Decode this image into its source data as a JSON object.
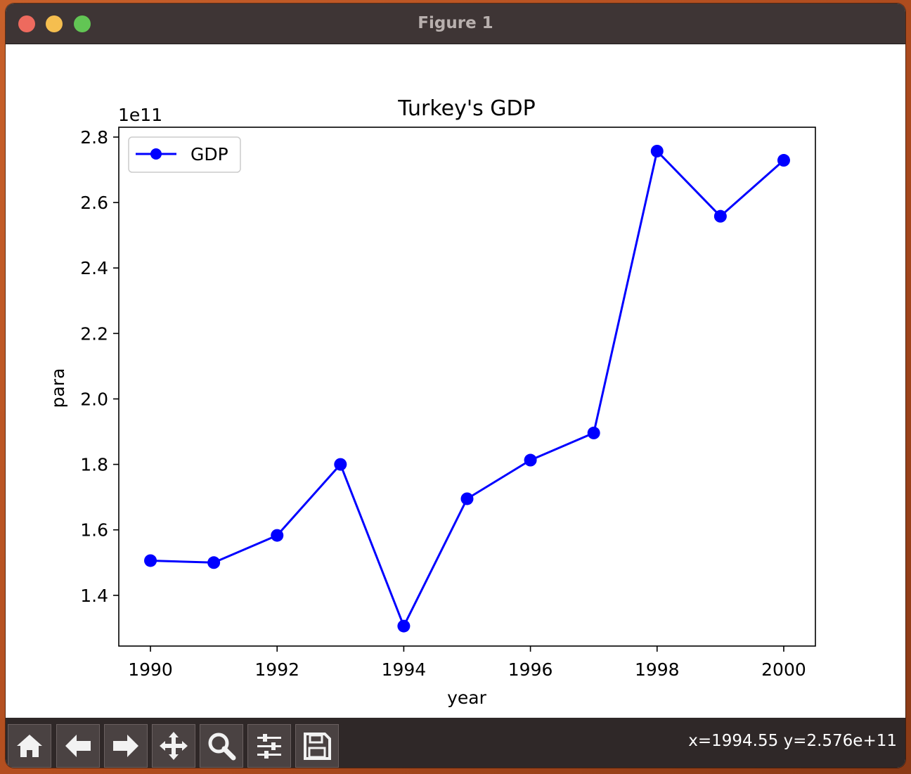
{
  "window": {
    "title": "Figure 1"
  },
  "toolbar": {
    "buttons": [
      {
        "name": "home-button",
        "icon": "home-icon"
      },
      {
        "name": "back-button",
        "icon": "arrow-left-icon"
      },
      {
        "name": "forward-button",
        "icon": "arrow-right-icon"
      },
      {
        "name": "pan-button",
        "icon": "move-icon"
      },
      {
        "name": "zoom-button",
        "icon": "magnifier-icon"
      },
      {
        "name": "configure-subplots-button",
        "icon": "sliders-icon"
      },
      {
        "name": "save-button",
        "icon": "floppy-disk-icon"
      }
    ],
    "coords": "x=1994.55 y=2.576e+11"
  },
  "chart_data": {
    "type": "line",
    "title": "Turkey's GDP",
    "xlabel": "year",
    "ylabel": "para",
    "offset_label": "1e11",
    "x": [
      1990,
      1991,
      1992,
      1993,
      1994,
      1995,
      1996,
      1997,
      1998,
      1999,
      2000
    ],
    "series": [
      {
        "name": "GDP",
        "color": "#0000ff",
        "marker": "circle",
        "values": [
          150600000000.0,
          150000000000.0,
          158300000000.0,
          180000000000.0,
          130600000000.0,
          169500000000.0,
          181300000000.0,
          189600000000.0,
          275700000000.0,
          255800000000.0,
          272900000000.0
        ]
      }
    ],
    "xticks": [
      1990,
      1992,
      1994,
      1996,
      1998,
      2000
    ],
    "xtick_labels": [
      "1990",
      "1992",
      "1994",
      "1996",
      "1998",
      "2000"
    ],
    "yticks": [
      140000000000.0,
      160000000000.0,
      180000000000.0,
      200000000000.0,
      220000000000.0,
      240000000000.0,
      260000000000.0,
      280000000000.0
    ],
    "ytick_labels": [
      "1.4",
      "1.6",
      "1.8",
      "2.0",
      "2.2",
      "2.4",
      "2.6",
      "2.8"
    ],
    "xlim": [
      1989.5,
      2000.5
    ],
    "ylim": [
      124500000000.0,
      283000000000.0
    ],
    "legend": "upper left",
    "grid": false
  }
}
